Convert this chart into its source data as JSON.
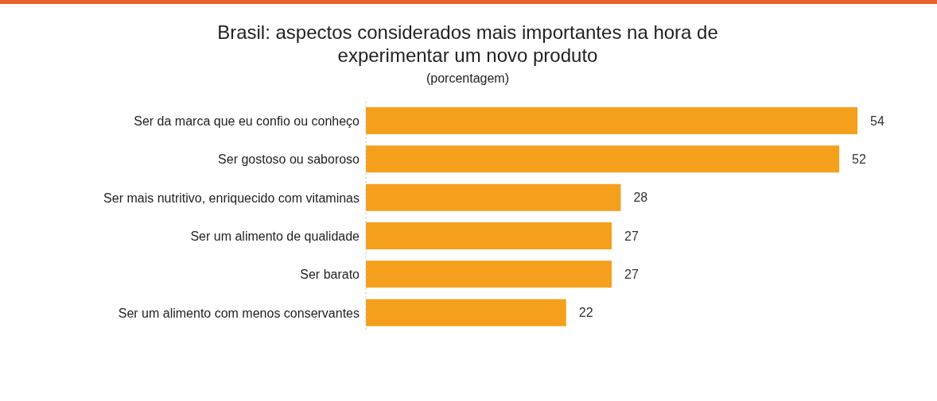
{
  "chart_data": {
    "type": "bar",
    "orientation": "horizontal",
    "title": "Brasil: aspectos considerados mais importantes na hora de experimentar um novo produto",
    "subtitle": "(porcentagem)",
    "categories": [
      "Ser da marca que eu confio ou conheço",
      "Ser gostoso ou saboroso",
      "Ser mais nutritivo, enriquecido com vitaminas",
      "Ser um alimento de qualidade",
      "Ser barato",
      "Ser um alimento com menos conservantes"
    ],
    "values": [
      54,
      52,
      28,
      27,
      27,
      22
    ],
    "color": "#f5a01c",
    "data_labels": true
  }
}
